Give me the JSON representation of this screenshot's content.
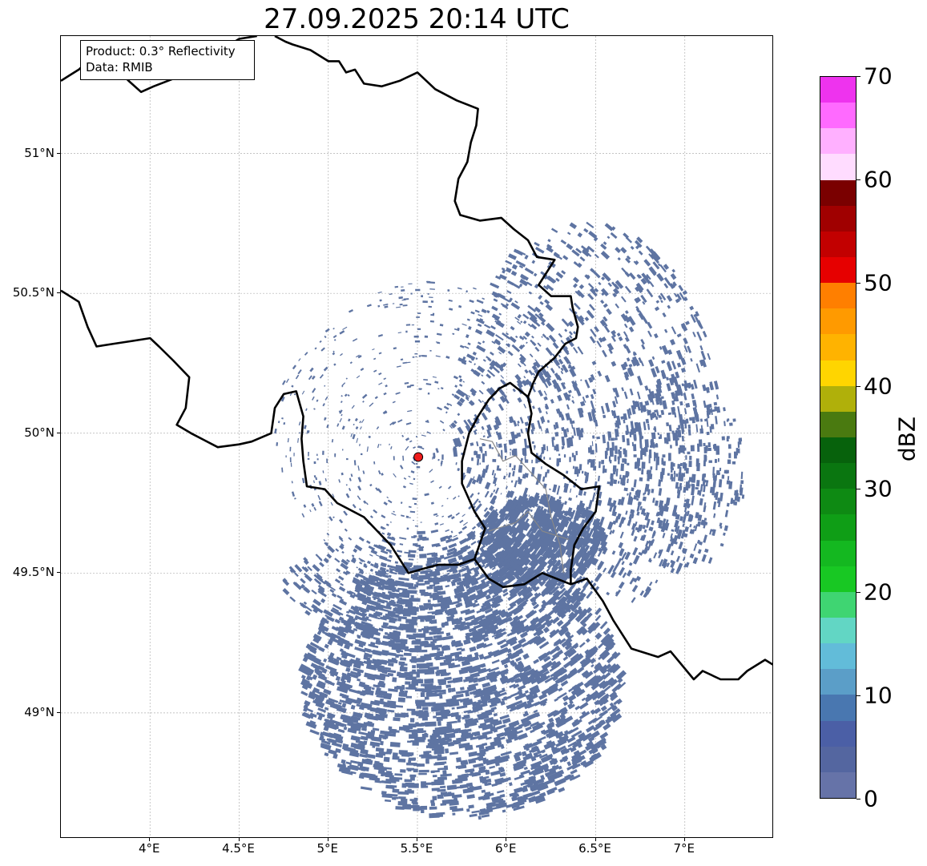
{
  "title": "27.09.2025 20:14 UTC",
  "info_box": {
    "product": "Product: 0.3° Reflectivity",
    "data_source": "Data: RMIB"
  },
  "map": {
    "lon_range": [
      3.5,
      7.5
    ],
    "lat_range": [
      48.55,
      51.42
    ],
    "x_ticks": [
      {
        "value": 4.0,
        "label": "4°E"
      },
      {
        "value": 4.5,
        "label": "4.5°E"
      },
      {
        "value": 5.0,
        "label": "5°E"
      },
      {
        "value": 5.5,
        "label": "5.5°E"
      },
      {
        "value": 6.0,
        "label": "6°E"
      },
      {
        "value": 6.5,
        "label": "6.5°E"
      },
      {
        "value": 7.0,
        "label": "7°E"
      }
    ],
    "y_ticks": [
      {
        "value": 51.0,
        "label": "51°N"
      },
      {
        "value": 50.5,
        "label": "50.5°N"
      },
      {
        "value": 50.0,
        "label": "50°N"
      },
      {
        "value": 49.5,
        "label": "49.5°N"
      },
      {
        "value": 49.0,
        "label": "49°N"
      }
    ],
    "radar_site": {
      "lon": 5.505,
      "lat": 49.915,
      "color": "#ee1c1c"
    },
    "echo_color": "#5e74a2",
    "borders": [
      [
        [
          3.5,
          51.26
        ],
        [
          3.55,
          51.28
        ],
        [
          3.6,
          51.3
        ],
        [
          3.65,
          51.33
        ],
        [
          3.72,
          51.35
        ],
        [
          3.77,
          51.33
        ],
        [
          3.82,
          51.3
        ],
        [
          3.88,
          51.26
        ],
        [
          3.95,
          51.22
        ],
        [
          4.02,
          51.24
        ],
        [
          4.1,
          51.26
        ],
        [
          4.18,
          51.28
        ],
        [
          4.23,
          51.33
        ],
        [
          4.3,
          51.37
        ],
        [
          4.4,
          51.37
        ],
        [
          4.5,
          51.41
        ],
        [
          4.6,
          51.42
        ]
      ],
      [
        [
          4.7,
          51.42
        ],
        [
          4.76,
          51.4
        ],
        [
          4.8,
          51.39
        ],
        [
          4.9,
          51.37
        ],
        [
          5.0,
          51.33
        ],
        [
          5.06,
          51.33
        ],
        [
          5.1,
          51.29
        ],
        [
          5.15,
          51.3
        ],
        [
          5.2,
          51.25
        ],
        [
          5.3,
          51.24
        ],
        [
          5.4,
          51.26
        ],
        [
          5.5,
          51.29
        ],
        [
          5.6,
          51.23
        ],
        [
          5.72,
          51.19
        ],
        [
          5.84,
          51.16
        ],
        [
          5.83,
          51.1
        ],
        [
          5.8,
          51.04
        ],
        [
          5.78,
          50.97
        ],
        [
          5.73,
          50.91
        ],
        [
          5.71,
          50.83
        ],
        [
          5.74,
          50.78
        ],
        [
          5.85,
          50.76
        ],
        [
          5.97,
          50.77
        ],
        [
          6.04,
          50.73
        ],
        [
          6.12,
          50.69
        ],
        [
          6.17,
          50.63
        ],
        [
          6.27,
          50.62
        ],
        [
          6.23,
          50.58
        ],
        [
          6.18,
          50.53
        ],
        [
          6.25,
          50.49
        ],
        [
          6.36,
          50.49
        ],
        [
          6.37,
          50.45
        ],
        [
          6.4,
          50.38
        ],
        [
          6.39,
          50.34
        ],
        [
          6.33,
          50.32
        ],
        [
          6.27,
          50.27
        ],
        [
          6.18,
          50.22
        ],
        [
          6.15,
          50.18
        ],
        [
          6.12,
          50.13
        ]
      ],
      [
        [
          6.12,
          50.13
        ],
        [
          6.14,
          50.07
        ],
        [
          6.12,
          50.0
        ],
        [
          6.14,
          49.93
        ],
        [
          6.22,
          49.89
        ],
        [
          6.32,
          49.85
        ],
        [
          6.42,
          49.8
        ],
        [
          6.52,
          49.81
        ],
        [
          6.5,
          49.72
        ],
        [
          6.43,
          49.66
        ],
        [
          6.38,
          49.6
        ],
        [
          6.36,
          49.51
        ],
        [
          6.36,
          49.46
        ],
        [
          6.2,
          49.5
        ],
        [
          6.1,
          49.46
        ],
        [
          5.98,
          49.45
        ],
        [
          5.9,
          49.48
        ],
        [
          5.82,
          49.55
        ]
      ],
      [
        [
          6.12,
          50.13
        ],
        [
          6.02,
          50.18
        ],
        [
          5.96,
          50.16
        ],
        [
          5.9,
          50.12
        ],
        [
          5.84,
          50.06
        ],
        [
          5.79,
          50.0
        ],
        [
          5.75,
          49.9
        ],
        [
          5.75,
          49.82
        ],
        [
          5.82,
          49.72
        ],
        [
          5.88,
          49.66
        ],
        [
          5.82,
          49.55
        ],
        [
          5.73,
          49.53
        ],
        [
          5.62,
          49.53
        ],
        [
          5.56,
          49.52
        ],
        [
          5.45,
          49.5
        ],
        [
          5.35,
          49.6
        ],
        [
          5.2,
          49.7
        ],
        [
          5.05,
          49.75
        ],
        [
          4.98,
          49.8
        ],
        [
          4.88,
          49.81
        ],
        [
          4.86,
          49.9
        ],
        [
          4.85,
          49.98
        ],
        [
          4.86,
          50.06
        ],
        [
          4.82,
          50.15
        ],
        [
          4.75,
          50.14
        ],
        [
          4.7,
          50.09
        ],
        [
          4.68,
          50.0
        ],
        [
          4.57,
          49.97
        ],
        [
          4.5,
          49.96
        ],
        [
          4.38,
          49.95
        ],
        [
          4.23,
          50.0
        ],
        [
          4.15,
          50.03
        ],
        [
          4.2,
          50.09
        ],
        [
          4.22,
          50.2
        ],
        [
          4.13,
          50.26
        ],
        [
          4.05,
          50.31
        ],
        [
          4.0,
          50.34
        ],
        [
          3.9,
          50.33
        ],
        [
          3.8,
          50.32
        ],
        [
          3.7,
          50.31
        ],
        [
          3.65,
          50.38
        ],
        [
          3.6,
          50.47
        ],
        [
          3.5,
          50.51
        ]
      ],
      [
        [
          6.36,
          49.46
        ],
        [
          6.45,
          49.48
        ],
        [
          6.54,
          49.4
        ],
        [
          6.6,
          49.33
        ],
        [
          6.7,
          49.23
        ],
        [
          6.85,
          49.2
        ],
        [
          6.92,
          49.22
        ],
        [
          7.05,
          49.12
        ],
        [
          7.1,
          49.15
        ],
        [
          7.2,
          49.12
        ],
        [
          7.3,
          49.12
        ],
        [
          7.35,
          49.15
        ],
        [
          7.45,
          49.19
        ],
        [
          7.5,
          49.17
        ]
      ]
    ],
    "secondary_borders": [
      [
        [
          5.85,
          49.98
        ],
        [
          5.92,
          49.97
        ],
        [
          5.98,
          49.9
        ],
        [
          6.05,
          49.92
        ],
        [
          6.15,
          49.85
        ],
        [
          6.22,
          49.8
        ],
        [
          6.25,
          49.7
        ],
        [
          6.3,
          49.6
        ],
        [
          6.32,
          49.5
        ]
      ],
      [
        [
          5.9,
          49.65
        ],
        [
          6.05,
          49.68
        ],
        [
          6.12,
          49.72
        ],
        [
          6.2,
          49.65
        ],
        [
          6.35,
          49.62
        ]
      ]
    ],
    "echo_regions": [
      {
        "lon": 5.6,
        "lat": 50.0,
        "rlon": 0.9,
        "rlat": 0.55,
        "count": 700,
        "size": 0.55
      },
      {
        "lon": 6.45,
        "lat": 50.05,
        "rlon": 0.75,
        "rlat": 0.7,
        "count": 1100,
        "size": 1.0
      },
      {
        "lon": 6.2,
        "lat": 49.62,
        "rlon": 0.35,
        "rlat": 0.15,
        "count": 450,
        "size": 1.3
      },
      {
        "lon": 5.75,
        "lat": 49.1,
        "rlon": 0.9,
        "rlat": 0.48,
        "count": 2200,
        "size": 1.2
      },
      {
        "lon": 5.6,
        "lat": 49.45,
        "rlon": 0.85,
        "rlat": 0.2,
        "count": 500,
        "size": 0.9
      },
      {
        "lon": 6.95,
        "lat": 49.85,
        "rlon": 0.4,
        "rlat": 0.35,
        "count": 350,
        "size": 0.9
      }
    ]
  },
  "colorbar": {
    "label": "dBZ",
    "min": 0,
    "max": 70,
    "ticks": [
      "0",
      "10",
      "20",
      "30",
      "40",
      "50",
      "60",
      "70"
    ],
    "colors": [
      "#6673a8",
      "#5466a0",
      "#4b5fa6",
      "#4977b0",
      "#5b9ec8",
      "#62bcd9",
      "#62d6c4",
      "#3fd572",
      "#18c823",
      "#14b820",
      "#0f9e16",
      "#0e8a13",
      "#0a7610",
      "#07620c",
      "#4a7a10",
      "#b0b00a",
      "#ffd500",
      "#ffb300",
      "#ff9a00",
      "#ff7f00",
      "#e60000",
      "#c20000",
      "#a00000",
      "#7a0000",
      "#ffdcff",
      "#ffb0ff",
      "#ff6aff",
      "#ee33ee"
    ]
  }
}
